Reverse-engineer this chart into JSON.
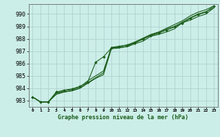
{
  "title": "Graphe pression niveau de la mer (hPa)",
  "background_color": "#cceee8",
  "grid_color": "#aacccc",
  "line_color": "#1a5c1a",
  "x_labels": [
    "0",
    "1",
    "2",
    "3",
    "4",
    "5",
    "6",
    "7",
    "8",
    "9",
    "10",
    "11",
    "12",
    "13",
    "14",
    "15",
    "16",
    "17",
    "18",
    "19",
    "20",
    "21",
    "22",
    "23"
  ],
  "ylim": [
    982.5,
    990.8
  ],
  "xlim": [
    -0.5,
    23.5
  ],
  "yticks": [
    983,
    984,
    985,
    986,
    987,
    988,
    989,
    990
  ],
  "series": [
    [
      983.3,
      982.9,
      982.9,
      983.6,
      983.7,
      983.8,
      984.0,
      984.45,
      984.85,
      985.25,
      987.3,
      987.3,
      987.35,
      987.6,
      987.8,
      988.2,
      988.35,
      988.55,
      988.8,
      989.3,
      989.5,
      989.8,
      990.0,
      990.5
    ],
    [
      983.3,
      982.9,
      982.9,
      983.7,
      983.85,
      983.95,
      984.15,
      984.5,
      986.1,
      986.55,
      987.25,
      987.35,
      987.5,
      987.65,
      988.0,
      988.25,
      988.45,
      988.7,
      988.95,
      989.25,
      989.65,
      989.95,
      990.15,
      990.65
    ],
    [
      983.3,
      982.9,
      982.9,
      983.5,
      983.7,
      983.8,
      984.0,
      984.4,
      984.8,
      985.1,
      987.2,
      987.25,
      987.4,
      987.7,
      987.95,
      988.3,
      988.5,
      988.8,
      989.0,
      989.35,
      989.7,
      990.0,
      990.2,
      990.5
    ],
    [
      983.3,
      982.9,
      982.9,
      983.6,
      983.8,
      983.9,
      984.1,
      984.6,
      985.0,
      985.4,
      987.3,
      987.4,
      987.5,
      987.75,
      988.05,
      988.35,
      988.55,
      988.85,
      989.15,
      989.45,
      989.85,
      990.15,
      990.35,
      990.65
    ]
  ],
  "marker_series_index": 1
}
